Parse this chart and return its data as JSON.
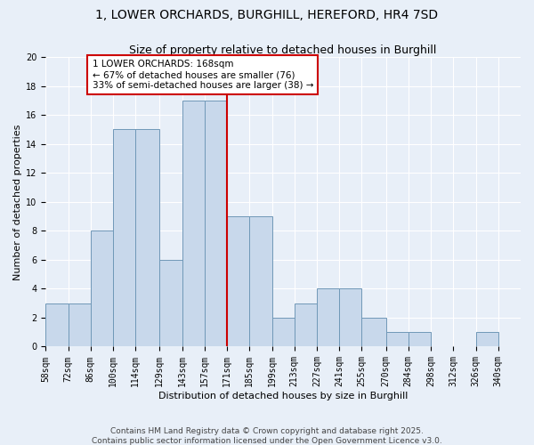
{
  "title": "1, LOWER ORCHARDS, BURGHILL, HEREFORD, HR4 7SD",
  "subtitle": "Size of property relative to detached houses in Burghill",
  "xlabel": "Distribution of detached houses by size in Burghill",
  "ylabel": "Number of detached properties",
  "bin_labels": [
    "58sqm",
    "72sqm",
    "86sqm",
    "100sqm",
    "114sqm",
    "129sqm",
    "143sqm",
    "157sqm",
    "171sqm",
    "185sqm",
    "199sqm",
    "213sqm",
    "227sqm",
    "241sqm",
    "255sqm",
    "270sqm",
    "284sqm",
    "298sqm",
    "312sqm",
    "326sqm",
    "340sqm"
  ],
  "bar_heights": [
    3,
    3,
    8,
    15,
    15,
    6,
    17,
    17,
    9,
    9,
    2,
    3,
    4,
    4,
    2,
    1,
    1,
    0,
    0,
    1,
    0
  ],
  "bar_color": "#c8d8eb",
  "bar_edgecolor": "#7098b8",
  "bin_starts": [
    58,
    72,
    86,
    100,
    114,
    129,
    143,
    157,
    171,
    185,
    199,
    213,
    227,
    241,
    255,
    270,
    284,
    298,
    312,
    326,
    340
  ],
  "annotation_text": "1 LOWER ORCHARDS: 168sqm\n← 67% of detached houses are smaller (76)\n33% of semi-detached houses are larger (38) →",
  "annotation_box_color": "#ffffff",
  "annotation_box_edgecolor": "#cc0000",
  "vline_color": "#cc0000",
  "background_color": "#e8eff8",
  "grid_color": "#ffffff",
  "ylim": [
    0,
    20
  ],
  "yticks": [
    0,
    2,
    4,
    6,
    8,
    10,
    12,
    14,
    16,
    18,
    20
  ],
  "footer_text": "Contains HM Land Registry data © Crown copyright and database right 2025.\nContains public sector information licensed under the Open Government Licence v3.0.",
  "title_fontsize": 10,
  "subtitle_fontsize": 9,
  "axis_label_fontsize": 8,
  "tick_fontsize": 7,
  "annotation_fontsize": 7.5,
  "footer_fontsize": 6.5
}
